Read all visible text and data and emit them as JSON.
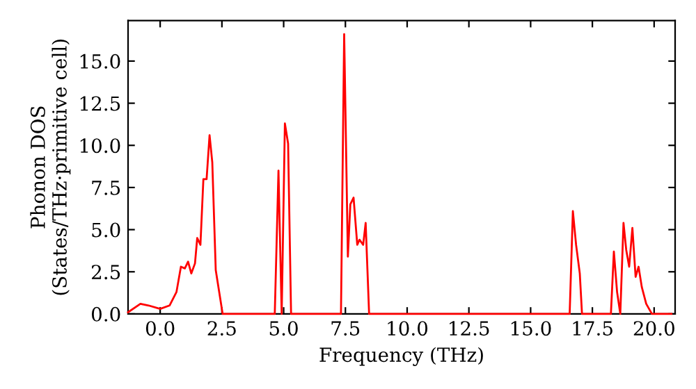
{
  "chart_data": {
    "type": "line",
    "xlabel": "Frequency (THz)",
    "ylabel": "Phonon DOS\n(States/THz·primitive cell)",
    "xlim": [
      -1.3,
      20.85
    ],
    "ylim": [
      0,
      17.4
    ],
    "xticks": [
      {
        "value": 0,
        "label": "0.0"
      },
      2.5,
      {
        "value": 5,
        "label": "5.0"
      },
      7.5,
      {
        "value": 10,
        "label": "10.0"
      },
      12.5,
      {
        "value": 15,
        "label": "15.0"
      },
      17.5,
      {
        "value": 20,
        "label": "20.0"
      }
    ],
    "yticks": [
      {
        "value": 0,
        "label": "0.0"
      },
      2.5,
      {
        "value": 5,
        "label": "5.0"
      },
      7.5,
      {
        "value": 10,
        "label": "10.0"
      },
      12.5,
      {
        "value": 15,
        "label": "15.0"
      }
    ],
    "grid": false,
    "legend": false,
    "marker": "none",
    "line_style": "solid",
    "series": [
      {
        "color": "#ff0000",
        "x": [
          -1.3,
          -0.8,
          -0.47,
          0,
          0.38,
          0.66,
          0.84,
          1.0,
          1.13,
          1.26,
          1.41,
          1.5,
          1.63,
          1.75,
          1.88,
          2.0,
          2.11,
          2.25,
          2.53,
          4.64,
          4.79,
          4.92,
          5.05,
          5.18,
          5.3,
          7.32,
          7.45,
          7.6,
          7.7,
          7.83,
          7.98,
          8.07,
          8.22,
          8.32,
          8.46,
          16.58,
          16.71,
          16.84,
          16.99,
          17.08,
          18.25,
          18.37,
          18.5,
          18.63,
          18.76,
          18.87,
          18.99,
          19.12,
          19.25,
          19.37,
          19.5,
          19.68,
          19.91,
          20.7
        ],
        "values": [
          0.1,
          0.6,
          0.5,
          0.3,
          0.5,
          1.3,
          2.8,
          2.7,
          3.1,
          2.4,
          3.0,
          4.5,
          4.1,
          8.0,
          8.0,
          10.6,
          9.0,
          2.6,
          0,
          0,
          8.5,
          0,
          11.3,
          10.1,
          0,
          0,
          16.6,
          3.4,
          6.5,
          6.9,
          4.1,
          4.4,
          4.1,
          5.4,
          0,
          0,
          6.1,
          4.1,
          2.4,
          0,
          0,
          3.7,
          1.3,
          0,
          5.4,
          3.8,
          2.8,
          5.1,
          2.2,
          2.8,
          1.6,
          0.6,
          0,
          0
        ]
      }
    ]
  }
}
